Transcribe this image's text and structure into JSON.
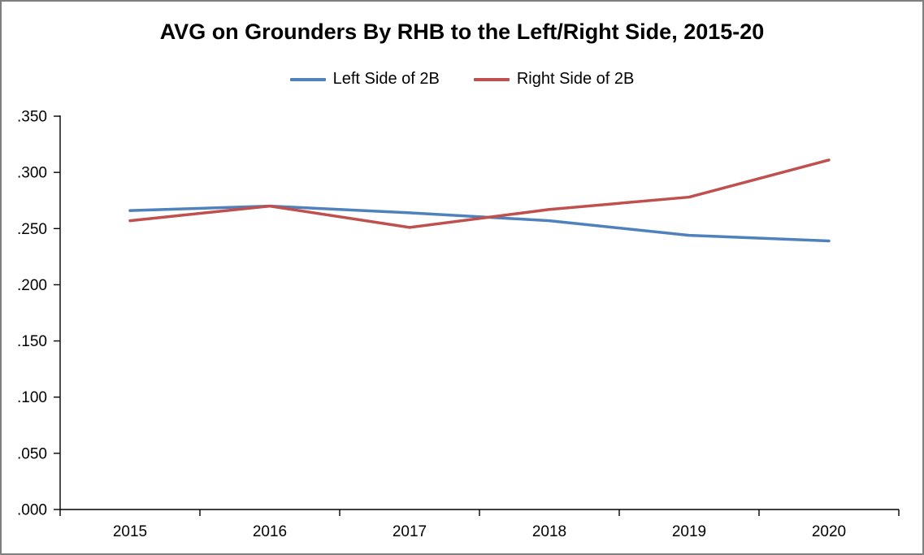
{
  "title": "AVG on Grounders By RHB to the Left/Right Side, 2015-20",
  "legend": [
    {
      "label": "Left Side of 2B",
      "color": "#4F81BD"
    },
    {
      "label": "Right Side of 2B",
      "color": "#C0504D"
    }
  ],
  "chart_data": {
    "type": "line",
    "title": "AVG on Grounders By RHB to the Left/Right Side, 2015-20",
    "categories": [
      "2015",
      "2016",
      "2017",
      "2018",
      "2019",
      "2020"
    ],
    "series": [
      {
        "name": "Left Side of 2B",
        "color": "#4F81BD",
        "values": [
          0.266,
          0.27,
          0.264,
          0.257,
          0.244,
          0.239
        ]
      },
      {
        "name": "Right Side of 2B",
        "color": "#C0504D",
        "values": [
          0.257,
          0.27,
          0.251,
          0.267,
          0.278,
          0.311
        ]
      }
    ],
    "xlabel": "",
    "ylabel": "",
    "ylim": [
      0,
      0.35
    ],
    "ytick_step": 0.05,
    "ytick_labels": [
      ".000",
      ".050",
      ".100",
      ".150",
      ".200",
      ".250",
      ".300",
      ".350"
    ],
    "grid": false,
    "legend_position": "top",
    "axis_color": "#000000",
    "background": "#FFFFFF"
  }
}
